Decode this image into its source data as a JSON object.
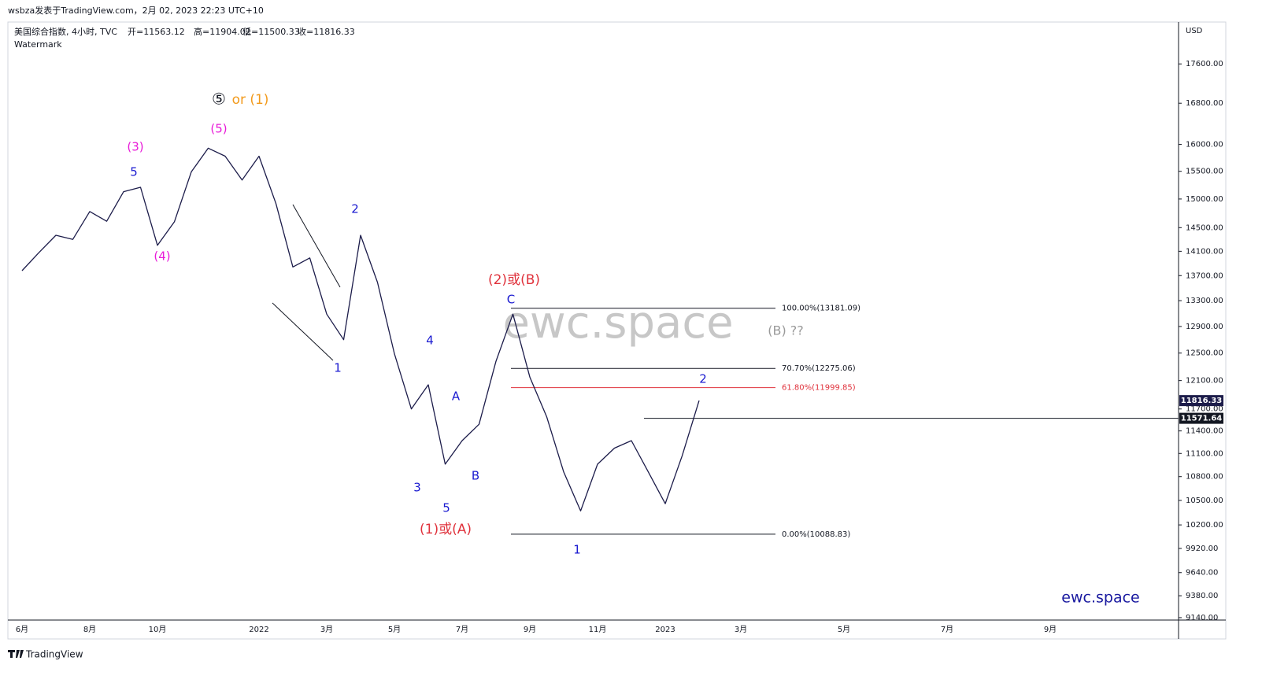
{
  "chart_data": {
    "type": "line",
    "publisher": "wsbza发表于TradingView.com，2月 02, 2023 22:23 UTC+10",
    "title": "美国综合指数, 4小时, TVC",
    "ohlc_legend": [
      "开=11563.12",
      "高=11904.02",
      "低=11500.33",
      "收=11816.33"
    ],
    "subtitle": "Watermark",
    "y_axis_label": "USD",
    "watermark": "ewc.space",
    "brand": "ewc.space",
    "footer": "TradingView",
    "log_scale": true,
    "ylim": [
      9114,
      18460
    ],
    "yticks": [
      {
        "value": 17600,
        "label": "17600.00"
      },
      {
        "value": 16800,
        "label": "16800.00"
      },
      {
        "value": 16000,
        "label": "16000.00"
      },
      {
        "value": 15500,
        "label": "15500.00"
      },
      {
        "value": 15000,
        "label": "15000.00"
      },
      {
        "value": 14500,
        "label": "14500.00"
      },
      {
        "value": 14100,
        "label": "14100.00"
      },
      {
        "value": 13700,
        "label": "13700.00"
      },
      {
        "value": 13300,
        "label": "13300.00"
      },
      {
        "value": 12900,
        "label": "12900.00"
      },
      {
        "value": 12500,
        "label": "12500.00"
      },
      {
        "value": 12100,
        "label": "12100.00"
      },
      {
        "value": 11700,
        "label": "11700.00"
      },
      {
        "value": 11400,
        "label": "11400.00"
      },
      {
        "value": 11100,
        "label": "11100.00"
      },
      {
        "value": 10800,
        "label": "10800.00"
      },
      {
        "value": 10500,
        "label": "10500.00"
      },
      {
        "value": 10200,
        "label": "10200.00"
      },
      {
        "value": 9920,
        "label": "9920.00"
      },
      {
        "value": 9640,
        "label": "9640.00"
      },
      {
        "value": 9380,
        "label": "9380.00"
      },
      {
        "value": 9140,
        "label": "9140.00"
      }
    ],
    "categories": [
      "6月",
      null,
      null,
      null,
      "8月",
      null,
      null,
      null,
      "10月",
      null,
      null,
      null,
      null,
      null,
      "2022",
      null,
      null,
      null,
      "3月",
      null,
      null,
      null,
      "5月",
      null,
      null,
      null,
      "7月",
      null,
      null,
      null,
      "9月",
      null,
      null,
      null,
      "11月",
      null,
      null,
      null,
      "2023",
      null,
      null,
      "3月",
      null,
      "5月",
      null,
      "7月",
      null,
      "9月",
      null,
      null
    ],
    "series": [
      {
        "name": "美国综合指数",
        "color": "#1c1c4a",
        "values": [
          13780,
          14080,
          14370,
          14300,
          14780,
          14610,
          15130,
          15210,
          14200,
          14600,
          15490,
          15930,
          15780,
          15340,
          15780,
          14920,
          13840,
          13990,
          13090,
          12700,
          14370,
          13590,
          12490,
          11700,
          12040,
          10960,
          11270,
          11490,
          12380,
          13090,
          12150,
          11590,
          10860,
          10370,
          10960,
          11170,
          11270,
          10860,
          10460,
          11070,
          11816.33,
          null,
          null,
          null,
          null,
          null,
          null,
          null,
          null,
          null
        ]
      }
    ],
    "last_price": 11816.33,
    "marked_price": 11571.64,
    "fib_levels": [
      {
        "label": "100.00%(13181.09)",
        "value": 13181.09,
        "color": "#131722"
      },
      {
        "label": "70.70%(12275.06)",
        "value": 12275.06,
        "color": "#131722"
      },
      {
        "label": "61.80%(11999.85)",
        "value": 11999.85,
        "color": "#e0323c"
      },
      {
        "label": "0.00%(10088.83)",
        "value": 10088.83,
        "color": "#131722"
      }
    ],
    "annotations": [
      {
        "text": "⑤",
        "color": "#131722"
      },
      {
        "text": "or (1)",
        "color": "#f29a1c"
      },
      {
        "text": "(3)",
        "color": "#e81ad8"
      },
      {
        "text": "(5)",
        "color": "#e81ad8"
      },
      {
        "text": "5",
        "color": "#1a1ad0"
      },
      {
        "text": "(4)",
        "color": "#e81ad8"
      },
      {
        "text": "2",
        "color": "#1a1ad0"
      },
      {
        "text": "1",
        "color": "#1a1ad0"
      },
      {
        "text": "4",
        "color": "#1a1ad0"
      },
      {
        "text": "A",
        "color": "#1a1ad0"
      },
      {
        "text": "B",
        "color": "#1a1ad0"
      },
      {
        "text": "3",
        "color": "#1a1ad0"
      },
      {
        "text": "5",
        "color": "#1a1ad0"
      },
      {
        "text": "(1)或(A)",
        "color": "#e0323c"
      },
      {
        "text": "(2)或(B)",
        "color": "#e0323c"
      },
      {
        "text": "C",
        "color": "#1a1ad0"
      },
      {
        "text": "1",
        "color": "#1a1ad0"
      },
      {
        "text": "2",
        "color": "#1a1ad0"
      },
      {
        "text": "(B) ??",
        "color": "#9a9a9a"
      }
    ]
  }
}
